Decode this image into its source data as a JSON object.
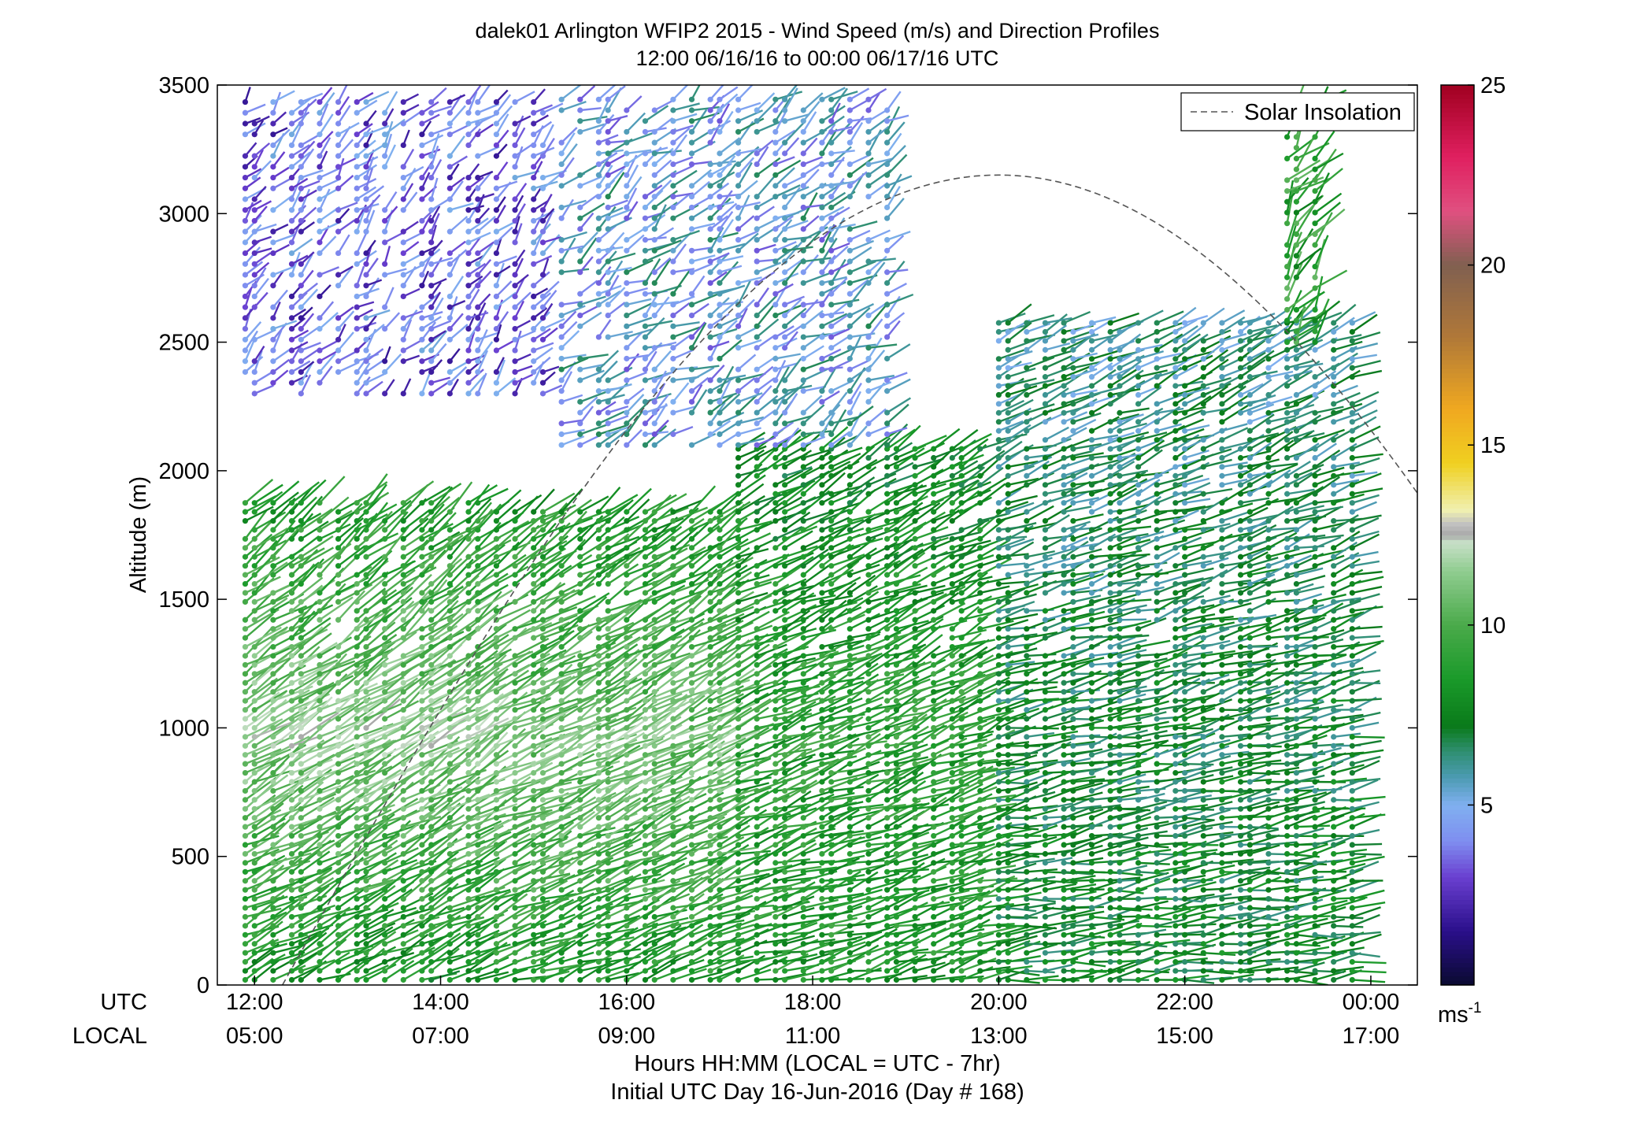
{
  "chart_data": {
    "type": "wind-barb-profile",
    "title_line1": "dalek01 Arlington WFIP2 2015 - Wind Speed (m/s) and Direction Profiles",
    "title_line2": "12:00 06/16/16 to 00:00 06/17/16  UTC",
    "ylabel": "Altitude (m)",
    "ylim": [
      0,
      3500
    ],
    "yticks": [
      "3500",
      "3000",
      "2500",
      "2000",
      "1500",
      "1000",
      "500",
      "0"
    ],
    "ytick_values": [
      3500,
      3000,
      2500,
      2000,
      1500,
      1000,
      500,
      0
    ],
    "xlim_hours": [
      11.6,
      24.5
    ],
    "xtick_hours": [
      12,
      14,
      16,
      18,
      20,
      22,
      24
    ],
    "row_labels": {
      "utc": "UTC",
      "local": "LOCAL"
    },
    "xticks_utc": [
      "12:00",
      "14:00",
      "16:00",
      "18:00",
      "20:00",
      "22:00",
      "00:00"
    ],
    "xticks_local": [
      "05:00",
      "07:00",
      "09:00",
      "11:00",
      "13:00",
      "15:00",
      "17:00"
    ],
    "xlabel_line1": "Hours HH:MM  (LOCAL = UTC - 7hr)",
    "xlabel_line2": "Initial UTC Day 16-Jun-2016 (Day # 168)",
    "legend": {
      "label": "Solar Insolation",
      "location": "top-right",
      "style": "dashed"
    },
    "colorbar": {
      "ticks": [
        "25",
        "20",
        "15",
        "10",
        "5"
      ],
      "tick_values": [
        25,
        20,
        15,
        10,
        5
      ],
      "range": [
        0,
        25
      ],
      "unit_main": "ms",
      "unit_sup": "-1",
      "stops": [
        {
          "v": 0,
          "c": "#0a0a30"
        },
        {
          "v": 1.5,
          "c": "#2a0f8a"
        },
        {
          "v": 3,
          "c": "#6a3fd0"
        },
        {
          "v": 4,
          "c": "#7f8ef0"
        },
        {
          "v": 5,
          "c": "#80b0f0"
        },
        {
          "v": 5.8,
          "c": "#4a9ab0"
        },
        {
          "v": 6.5,
          "c": "#2f8f70"
        },
        {
          "v": 7.2,
          "c": "#0a7a1a"
        },
        {
          "v": 8.5,
          "c": "#1a9a2a"
        },
        {
          "v": 10,
          "c": "#4aaa4a"
        },
        {
          "v": 11.5,
          "c": "#90cc90"
        },
        {
          "v": 12.3,
          "c": "#c8e0c8"
        },
        {
          "v": 12.5,
          "c": "#a8a8a8"
        },
        {
          "v": 12.8,
          "c": "#c0c0c0"
        },
        {
          "v": 13.2,
          "c": "#f0f0b0"
        },
        {
          "v": 14.5,
          "c": "#f0d020"
        },
        {
          "v": 16,
          "c": "#f0a820"
        },
        {
          "v": 18,
          "c": "#b07838"
        },
        {
          "v": 20,
          "c": "#806050"
        },
        {
          "v": 21.5,
          "c": "#e05080"
        },
        {
          "v": 23,
          "c": "#e02060"
        },
        {
          "v": 25,
          "c": "#a00020"
        }
      ]
    },
    "insolation_curve": {
      "start_hour": 12.3,
      "peak_hour": 20.0,
      "end_hour": 24.5,
      "peak_altitude_m": 3150,
      "end_altitude_m": 1750
    },
    "time_hours": [
      11.9,
      12.0,
      12.2,
      12.4,
      12.5,
      12.7,
      12.9,
      13.1,
      13.2,
      13.4,
      13.6,
      13.8,
      13.9,
      14.1,
      14.3,
      14.4,
      14.6,
      14.8,
      15.0,
      15.1,
      15.3,
      15.5,
      15.7,
      15.8,
      16.0,
      16.2,
      16.3,
      16.5,
      16.7,
      16.9,
      17.0,
      17.2,
      17.4,
      17.6,
      17.7,
      17.9,
      18.1,
      18.2,
      18.4,
      18.6,
      18.8,
      18.9,
      19.1,
      19.3,
      19.5,
      19.6,
      19.8,
      20.0,
      20.1,
      20.3,
      20.5,
      20.7,
      20.8,
      21.0,
      21.2,
      21.3,
      21.5,
      21.7,
      21.9,
      22.0,
      22.2,
      22.4,
      22.6,
      22.7,
      22.9,
      23.1,
      23.2,
      23.4,
      23.6,
      23.8,
      23.9
    ],
    "profiles": [
      {
        "hour_start": 11.9,
        "hour_end": 14.6,
        "alt_max": 1900,
        "speed_low": 8.0,
        "speed_mid": 11.5,
        "speed_high": 8.5,
        "dir_low": 245,
        "dir_high": 230
      },
      {
        "hour_start": 14.6,
        "hour_end": 17.2,
        "alt_max": 1850,
        "speed_low": 8.5,
        "speed_mid": 11.0,
        "speed_high": 8.5,
        "dir_low": 250,
        "dir_high": 235
      },
      {
        "hour_start": 17.2,
        "hour_end": 20.0,
        "alt_max": 2100,
        "speed_low": 8.5,
        "speed_mid": 9.0,
        "speed_high": 7.5,
        "dir_low": 255,
        "dir_high": 240
      },
      {
        "hour_start": 20.0,
        "hour_end": 23.9,
        "alt_max": 2600,
        "speed_low": 7.5,
        "speed_mid": 7.0,
        "speed_high": 6.0,
        "dir_low": 265,
        "dir_high": 245
      }
    ],
    "upper_profiles": [
      {
        "hour_start": 11.9,
        "hour_end": 15.3,
        "alt_min": 2300,
        "alt_max": 3450,
        "speed": 3.5,
        "dir": 225
      },
      {
        "hour_start": 15.3,
        "hour_end": 18.9,
        "alt_min": 2100,
        "alt_max": 3450,
        "speed": 5.0,
        "dir": 235
      },
      {
        "hour_start": 23.0,
        "hour_end": 23.6,
        "alt_min": 2500,
        "alt_max": 3450,
        "speed": 9.0,
        "dir": 220
      }
    ]
  }
}
